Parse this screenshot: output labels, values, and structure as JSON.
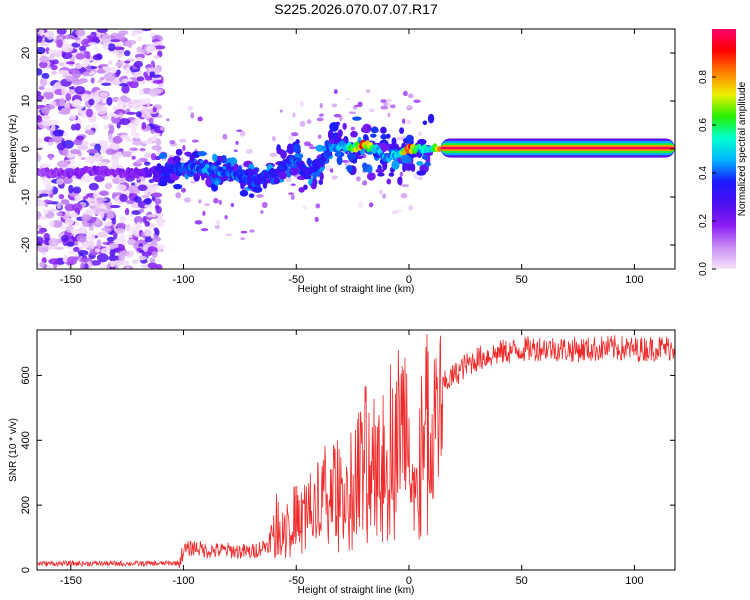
{
  "title": "S225.2026.070.07.07.R17",
  "chart_data": [
    {
      "type": "heatmap",
      "xlabel": "Height of straight line (km)",
      "ylabel": "Frequency (Hz)",
      "xlim": [
        -165,
        118
      ],
      "ylim": [
        -25,
        25
      ],
      "xticks": [
        -150,
        -100,
        -50,
        0,
        50,
        100
      ],
      "yticks": [
        -20,
        -10,
        0,
        10,
        20
      ],
      "grid": false,
      "colorbar": {
        "label": "Normalized spectral amplitude",
        "range": [
          0.0,
          1.0
        ],
        "ticks": [
          0.0,
          0.2,
          0.4,
          0.6,
          0.8
        ],
        "colors": [
          "#f6e3fb",
          "#c98ef1",
          "#8a1cf5",
          "#4b0ff0",
          "#1a1aff",
          "#00b4ff",
          "#00ffd0",
          "#27f000",
          "#f0f000",
          "#ff8000",
          "#ff0000",
          "#ff0070"
        ]
      },
      "ridge": {
        "x": [
          -165,
          -150,
          -140,
          -130,
          -120,
          -110,
          -100,
          -90,
          -80,
          -70,
          -60,
          -55,
          -50,
          -45,
          -40,
          -35,
          -30,
          -25,
          -20,
          -15,
          -10,
          -5,
          0,
          5,
          10,
          15,
          20,
          30,
          50,
          80,
          118
        ],
        "freq": [
          -5,
          -5,
          -4.5,
          -5,
          -5,
          -4.5,
          -4,
          -4,
          -5,
          -7,
          -5,
          -3,
          -2,
          -5,
          -3,
          0,
          1,
          0,
          1,
          0,
          -2,
          -1,
          0,
          0,
          0,
          0,
          0.2,
          0.2,
          0.1,
          0.1,
          0.1
        ],
        "amplitude": [
          0.15,
          0.18,
          0.2,
          0.18,
          0.2,
          0.3,
          0.4,
          0.45,
          0.4,
          0.38,
          0.35,
          0.35,
          0.4,
          0.3,
          0.35,
          0.4,
          0.5,
          0.6,
          0.9,
          0.5,
          0.45,
          0.5,
          0.9,
          0.5,
          0.6,
          0.9,
          0.95,
          0.98,
          0.98,
          0.98,
          0.98
        ]
      }
    },
    {
      "type": "line",
      "xlabel": "Height of straight line (km)",
      "ylabel": "SNR (10 * v/v)",
      "xlim": [
        -165,
        118
      ],
      "ylim": [
        0,
        740
      ],
      "xticks": [
        -150,
        -100,
        -50,
        0,
        50,
        100
      ],
      "yticks": [
        0,
        200,
        400,
        600
      ],
      "grid": false,
      "series": [
        {
          "name": "SNR",
          "color": "#ee2a2a",
          "x": [
            -165,
            -150,
            -140,
            -130,
            -120,
            -110,
            -102,
            -100,
            -95,
            -90,
            -80,
            -70,
            -62,
            -60,
            -55,
            -50,
            -45,
            -40,
            -35,
            -30,
            -25,
            -20,
            -15,
            -10,
            -5,
            0,
            3,
            5,
            10,
            15,
            20,
            25,
            30,
            40,
            50,
            60,
            70,
            80,
            90,
            100,
            110,
            118
          ],
          "y": [
            20,
            20,
            20,
            20,
            20,
            20,
            22,
            60,
            70,
            60,
            60,
            55,
            80,
            150,
            160,
            170,
            200,
            220,
            280,
            250,
            300,
            370,
            380,
            420,
            460,
            470,
            200,
            430,
            500,
            570,
            600,
            630,
            650,
            670,
            680,
            685,
            680,
            680,
            685,
            680,
            685,
            685
          ]
        }
      ]
    }
  ]
}
